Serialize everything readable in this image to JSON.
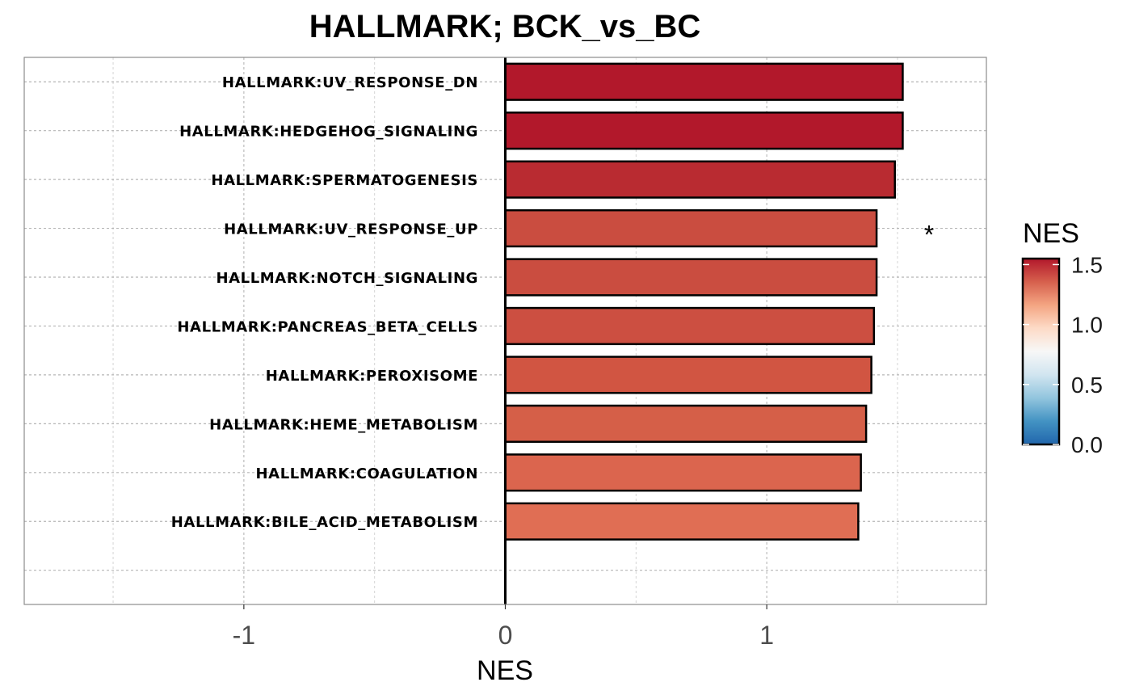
{
  "chart_data": {
    "type": "bar",
    "orientation": "horizontal",
    "title": "HALLMARK; BCK_vs_BC",
    "xlabel": "NES",
    "ylabel": "",
    "xlim": [
      -1.84,
      1.84
    ],
    "x_ticks": [
      -1,
      0,
      1
    ],
    "x_tick_labels": [
      "-1",
      "0",
      "1"
    ],
    "grid": true,
    "categories": [
      "HALLMARK:UV_RESPONSE_DN",
      "HALLMARK:HEDGEHOG_SIGNALING",
      "HALLMARK:SPERMATOGENESIS",
      "HALLMARK:UV_RESPONSE_UP",
      "HALLMARK:NOTCH_SIGNALING",
      "HALLMARK:PANCREAS_BETA_CELLS",
      "HALLMARK:PEROXISOME",
      "HALLMARK:HEME_METABOLISM",
      "HALLMARK:COAGULATION",
      "HALLMARK:BILE_ACID_METABOLISM"
    ],
    "values": [
      1.52,
      1.52,
      1.49,
      1.42,
      1.42,
      1.41,
      1.4,
      1.38,
      1.36,
      1.35
    ],
    "bar_colors": [
      "#b2182b",
      "#b2182b",
      "#b92b31",
      "#ca4d40",
      "#ca4d40",
      "#cc4f41",
      "#d15542",
      "#d55f48",
      "#db654e",
      "#e06e54"
    ],
    "significance_marks": [
      "",
      "",
      "",
      "*",
      "",
      "",
      "",
      "",
      "",
      ""
    ],
    "legend": {
      "title": "NES",
      "position": "right",
      "range": [
        0.0,
        1.55
      ],
      "ticks": [
        1.5,
        1.0,
        0.5,
        0.0
      ],
      "tick_labels": [
        "1.5",
        "1.0",
        "0.5",
        "0.0"
      ],
      "colors": [
        "#2166ac",
        "#4393c3",
        "#92c5de",
        "#d1e5f0",
        "#f7f7f7",
        "#fddbc7",
        "#f4a582",
        "#d6604d",
        "#b2182b"
      ]
    }
  }
}
